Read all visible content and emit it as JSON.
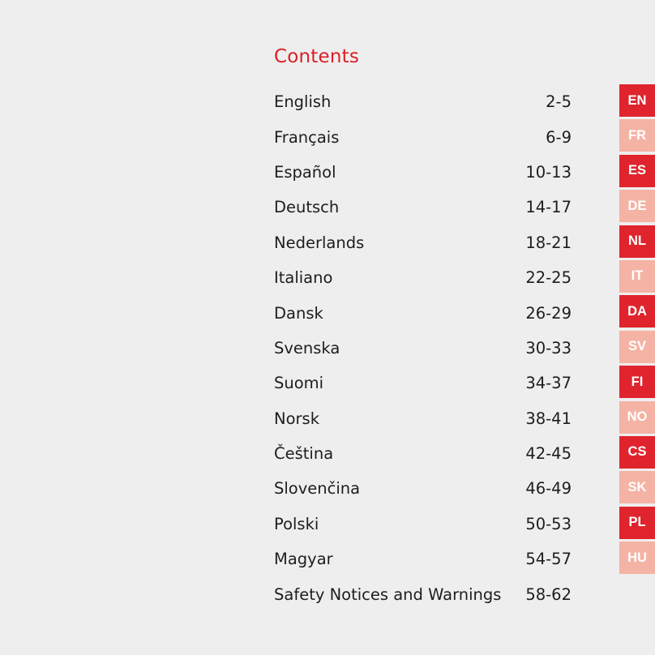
{
  "title": "Contents",
  "entries": [
    {
      "label": "English",
      "pages": "2-5"
    },
    {
      "label": "Français",
      "pages": "6-9"
    },
    {
      "label": "Español",
      "pages": "10-13"
    },
    {
      "label": "Deutsch",
      "pages": "14-17"
    },
    {
      "label": "Nederlands",
      "pages": "18-21"
    },
    {
      "label": "Italiano",
      "pages": "22-25"
    },
    {
      "label": "Dansk",
      "pages": "26-29"
    },
    {
      "label": "Svenska",
      "pages": "30-33"
    },
    {
      "label": "Suomi",
      "pages": "34-37"
    },
    {
      "label": "Norsk",
      "pages": "38-41"
    },
    {
      "label": "Čeština",
      "pages": "42-45"
    },
    {
      "label": "Slovenčina",
      "pages": "46-49"
    },
    {
      "label": "Polski",
      "pages": "50-53"
    },
    {
      "label": "Magyar",
      "pages": "54-57"
    },
    {
      "label": "Safety Notices and Warnings",
      "pages": "58-62"
    }
  ],
  "tabs": [
    {
      "code": "EN",
      "style": "dark"
    },
    {
      "code": "FR",
      "style": "light"
    },
    {
      "code": "ES",
      "style": "dark"
    },
    {
      "code": "DE",
      "style": "light"
    },
    {
      "code": "NL",
      "style": "dark"
    },
    {
      "code": "IT",
      "style": "light"
    },
    {
      "code": "DA",
      "style": "dark"
    },
    {
      "code": "SV",
      "style": "light"
    },
    {
      "code": "FI",
      "style": "dark"
    },
    {
      "code": "NO",
      "style": "light"
    },
    {
      "code": "CS",
      "style": "dark"
    },
    {
      "code": "SK",
      "style": "light"
    },
    {
      "code": "PL",
      "style": "dark"
    },
    {
      "code": "HU",
      "style": "light"
    }
  ],
  "colors": {
    "accent": "#d81f26",
    "tab_dark": "#e0242d",
    "tab_light": "#f4b3a4",
    "background": "#efeeee",
    "text": "#1d1d1d"
  }
}
